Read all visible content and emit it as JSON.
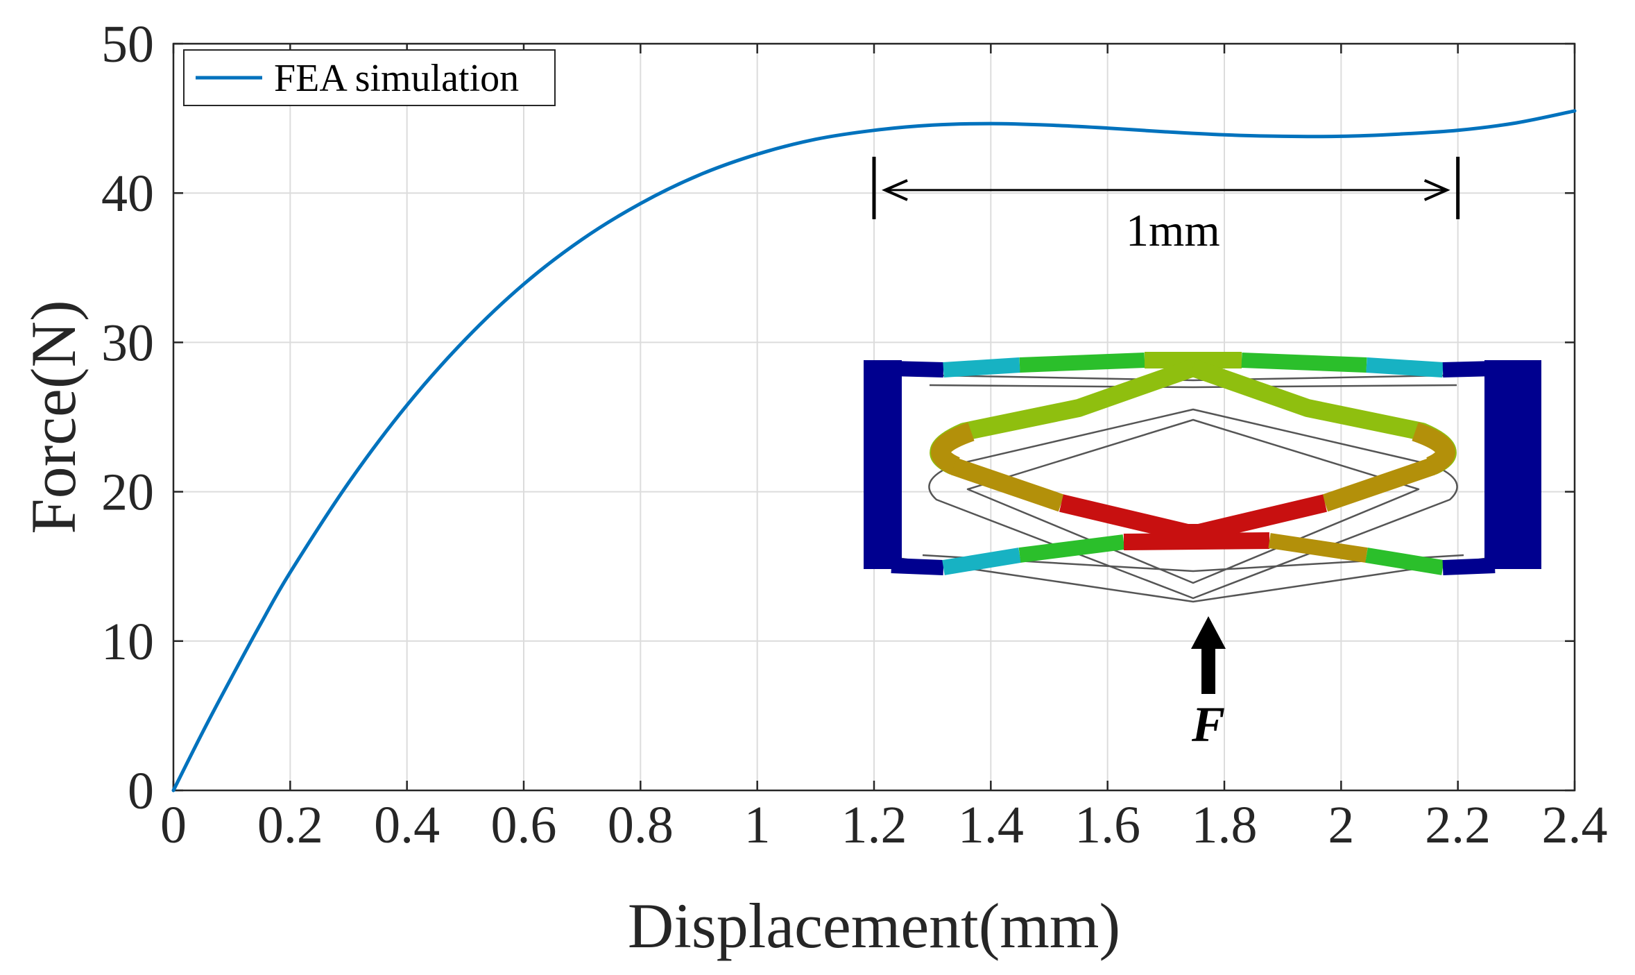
{
  "chart_data": {
    "type": "line",
    "title": "",
    "xlabel": "Displacement(mm)",
    "ylabel": "Force(N)",
    "xlim": [
      0,
      2.4
    ],
    "ylim": [
      0,
      50
    ],
    "grid": true,
    "xticks": [
      0,
      0.2,
      0.4,
      0.6,
      0.8,
      1,
      1.2,
      1.4,
      1.6,
      1.8,
      2,
      2.2,
      2.4
    ],
    "xtick_labels": [
      "0",
      "0.2",
      "0.4",
      "0.6",
      "0.8",
      "1",
      "1.2",
      "1.4",
      "1.6",
      "1.8",
      "2",
      "2.2",
      "2.4"
    ],
    "yticks": [
      0,
      10,
      20,
      30,
      40,
      50
    ],
    "ytick_labels": [
      "0",
      "10",
      "20",
      "30",
      "40",
      "50"
    ],
    "legend": {
      "location": "top-left",
      "entries": [
        "FEA simulation"
      ]
    },
    "series": [
      {
        "name": "FEA simulation",
        "color": "#0072BD",
        "x": [
          0,
          0.05,
          0.1,
          0.15,
          0.2,
          0.3,
          0.4,
          0.5,
          0.6,
          0.7,
          0.8,
          0.9,
          1.0,
          1.1,
          1.2,
          1.3,
          1.4,
          1.5,
          1.6,
          1.7,
          1.8,
          1.9,
          2.0,
          2.1,
          2.2,
          2.3,
          2.4
        ],
        "y": [
          0,
          3.9,
          7.6,
          11.2,
          14.6,
          20.6,
          25.8,
          30.2,
          33.9,
          36.9,
          39.3,
          41.2,
          42.6,
          43.6,
          44.2,
          44.55,
          44.65,
          44.55,
          44.35,
          44.1,
          43.9,
          43.8,
          43.8,
          43.95,
          44.2,
          44.7,
          45.5
        ]
      }
    ],
    "annotations": [
      {
        "type": "dimension",
        "x_start": 1.2,
        "x_end": 2.2,
        "y": 40.2,
        "text": "1mm"
      },
      {
        "type": "force-arrow",
        "text": "F"
      }
    ]
  },
  "colors": {
    "line": "#0072BD",
    "axis": "#262626",
    "grid": "#dcdcdc",
    "fea_fixed": "#00008f",
    "fea_low": "#1a6fd1",
    "fea_lowmid": "#17b2c3",
    "fea_mid": "#2bbf2b",
    "fea_midhigh": "#8fbf0f",
    "fea_high": "#b3900a",
    "fea_max": "#c81010"
  }
}
